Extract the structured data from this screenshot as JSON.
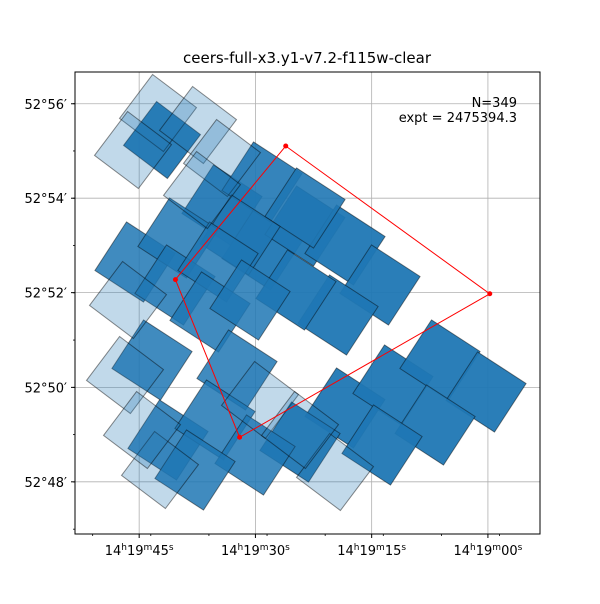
{
  "chart_data": {
    "type": "scatter",
    "title": "ceers-full-x3.y1-v7.2-f115w-clear",
    "annotation": {
      "n_label": "N=349",
      "expt_label": "expt = 2475394.3"
    },
    "x_ticks": [
      {
        "value": 214.9375,
        "label": "14h19m45s"
      },
      {
        "value": 214.875,
        "label": "14h19m30s"
      },
      {
        "value": 214.8125,
        "label": "14h19m15s"
      },
      {
        "value": 214.75,
        "label": "14h19m00s"
      }
    ],
    "y_ticks": [
      {
        "value": 52.9333,
        "label": "52°56′"
      },
      {
        "value": 52.9,
        "label": "52°54′"
      },
      {
        "value": 52.8667,
        "label": "52°52′"
      },
      {
        "value": 52.8333,
        "label": "52°50′"
      },
      {
        "value": 52.8,
        "label": "52°48′"
      }
    ],
    "xlim": [
      214.972,
      214.722
    ],
    "ylim": [
      52.7816,
      52.9445
    ],
    "grid": true,
    "colors": {
      "tile": "#1f77b4",
      "tile_edge": "#000000",
      "outline": "#ff0000"
    },
    "footprint_outline": [
      {
        "ra": 214.918,
        "dec": 52.8713
      },
      {
        "ra": 214.8587,
        "dec": 52.9184
      },
      {
        "ra": 214.749,
        "dec": 52.8663
      },
      {
        "ra": 214.8835,
        "dec": 52.8157
      }
    ]
  }
}
